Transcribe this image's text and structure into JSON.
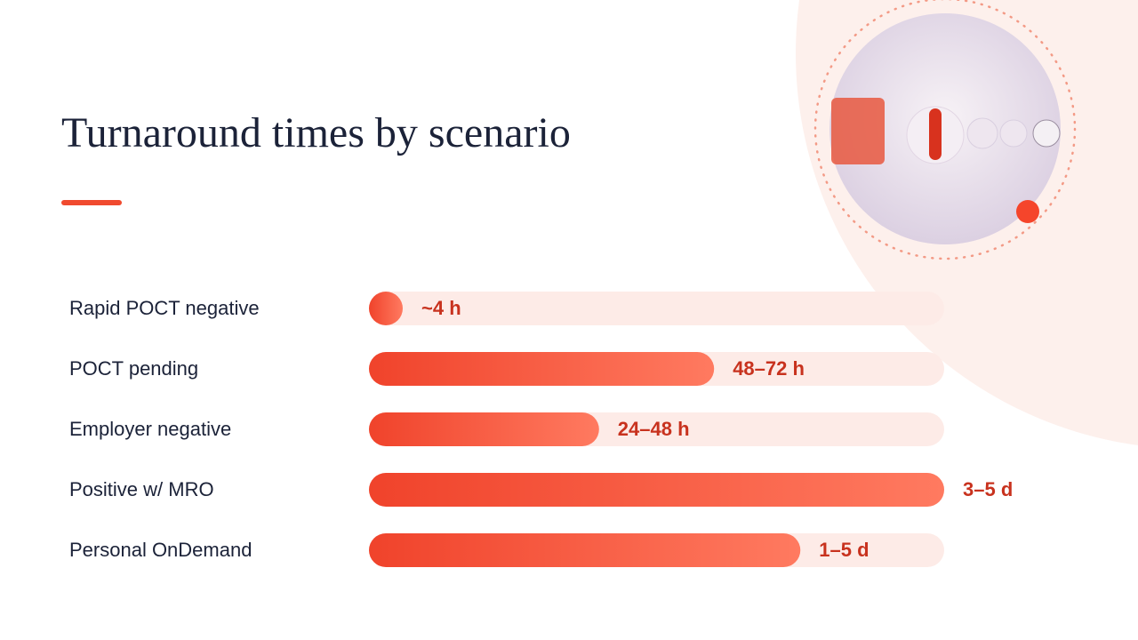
{
  "chart_data": {
    "type": "bar",
    "orientation": "horizontal",
    "title": "Turnaround times by scenario",
    "categories": [
      "Rapid POCT negative",
      "POCT pending",
      "Employer negative",
      "Positive w/ MRO",
      "Personal OnDemand"
    ],
    "values": [
      4,
      72,
      48,
      120,
      90
    ],
    "value_labels": [
      "~4 h",
      "48–72 h",
      "24–48 h",
      "3–5 d",
      "1–5 d"
    ],
    "xlim": [
      0,
      120
    ],
    "color": "#f04a2f"
  }
}
